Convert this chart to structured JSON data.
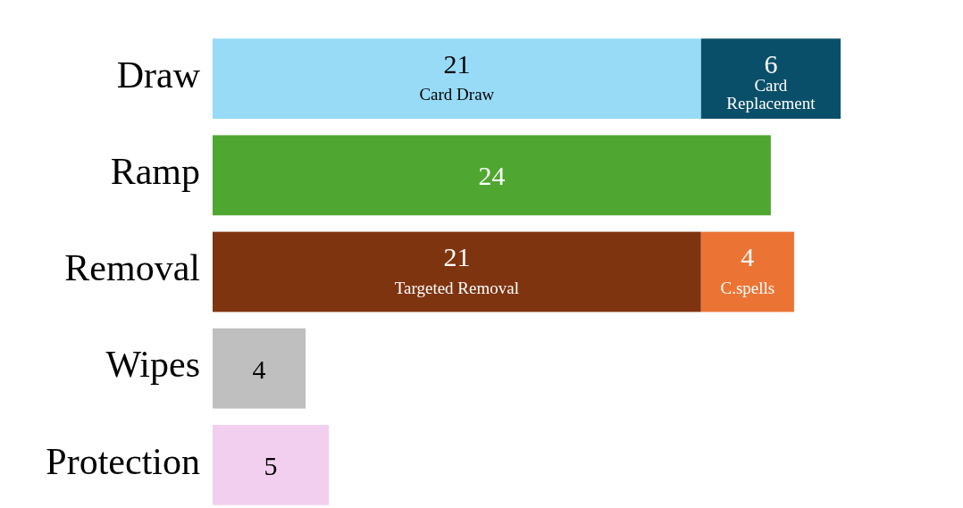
{
  "chart_data": {
    "type": "bar",
    "orientation": "horizontal",
    "stacked": true,
    "data_labels": true,
    "categories": [
      "Draw",
      "Ramp",
      "Removal",
      "Wipes",
      "Protection"
    ],
    "series": [
      {
        "values": [
          21,
          24,
          21,
          4,
          5
        ],
        "colors": [
          "#97dbf7",
          "#4fa731",
          "#7f3410",
          "#bfbfbf",
          "#f2cfee"
        ]
      },
      {
        "values": [
          6,
          null,
          4,
          null,
          null
        ],
        "colors": [
          "#0a4f6a",
          null,
          "#eb7434",
          null,
          null
        ]
      }
    ],
    "annotations": [
      {
        "text": "Card Draw",
        "x": 10.5,
        "y": "Draw"
      },
      {
        "text": "Card Replacement",
        "x": 24,
        "y": "Draw"
      },
      {
        "text": "Targeted Removal",
        "x": 10.5,
        "y": "Removal"
      },
      {
        "text": "C.spells",
        "x": 23,
        "y": "Removal"
      }
    ]
  }
}
